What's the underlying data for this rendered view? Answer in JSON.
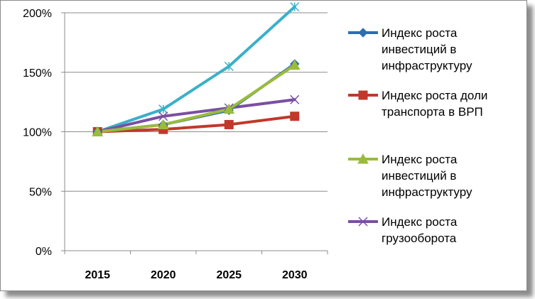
{
  "chart_data": {
    "type": "line",
    "categories": [
      "2015",
      "2020",
      "2025",
      "2030"
    ],
    "y_ticks": [
      "0%",
      "50%",
      "100%",
      "150%",
      "200%"
    ],
    "ylim": [
      0,
      200
    ],
    "grid": "horizontal",
    "legend_position": "right",
    "series": [
      {
        "name": "Индекс роста инвестиций в инфраструктуру",
        "legend_lines": [
          "Индекс роста",
          "инвестиций в",
          "инфраструктуру"
        ],
        "color": "#2e6db4",
        "marker": "diamond",
        "values": [
          100,
          106,
          118,
          157
        ]
      },
      {
        "name": "Индекс роста доли транспорта в ВРП",
        "legend_lines": [
          "Индекс роста доли",
          "транспорта в ВРП"
        ],
        "color": "#c0392b",
        "marker": "square",
        "values": [
          100,
          102,
          106,
          113
        ]
      },
      {
        "name": "Индекс роста инвестиций в инфраструктуру",
        "legend_lines": [
          "Индекс роста",
          "инвестиций в",
          "инфраструктуру"
        ],
        "color": "#9bbb3b",
        "marker": "triangle",
        "values": [
          100,
          106,
          119,
          156
        ]
      },
      {
        "name": "Индекс роста грузооборота",
        "legend_lines": [
          "Индекс роста",
          "грузооборота"
        ],
        "color": "#7a4fa3",
        "marker": "x",
        "values": [
          100,
          113,
          120,
          127
        ]
      },
      {
        "name": "",
        "legend_lines": [],
        "color": "#3ab0c8",
        "marker": "star",
        "values": [
          100,
          119,
          155,
          205
        ]
      }
    ]
  }
}
